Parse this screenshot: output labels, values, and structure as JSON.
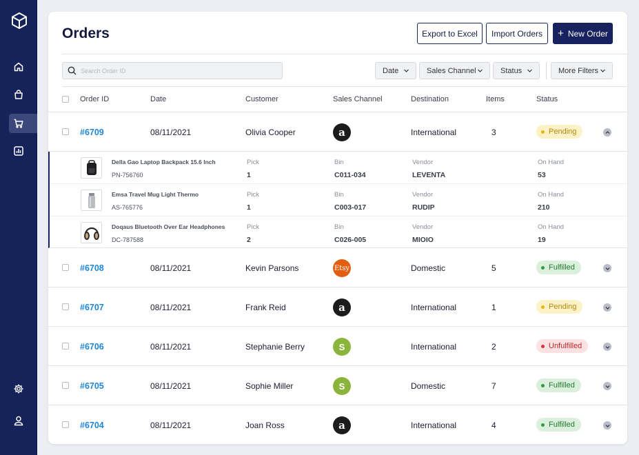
{
  "sidebar": {
    "logo": "box-logo",
    "items": [
      {
        "name": "home",
        "icon": "home-icon"
      },
      {
        "name": "products",
        "icon": "shopping-bag-icon"
      },
      {
        "name": "orders",
        "icon": "cart-icon",
        "active": true
      },
      {
        "name": "reports",
        "icon": "bar-chart-icon"
      },
      {
        "name": "settings",
        "icon": "gear-icon"
      },
      {
        "name": "account",
        "icon": "user-icon"
      }
    ]
  },
  "header": {
    "title": "Orders",
    "export_label": "Export to Excel",
    "import_label": "Import Orders",
    "new_label": "New Order"
  },
  "filters": {
    "search_placeholder": "Search Order ID",
    "date": "Date",
    "sales_channel": "Sales Channel",
    "status": "Status",
    "more": "More Filters"
  },
  "table": {
    "columns": [
      "Order ID",
      "Date",
      "Customer",
      "Sales Channel",
      "Destination",
      "Items",
      "Status"
    ],
    "rows": [
      {
        "id": "#6709",
        "date": "08/11/2021",
        "customer": "Olivia Cooper",
        "channel": "amazon",
        "destination": "International",
        "items": "3",
        "status": "Pending",
        "expanded": true
      },
      {
        "id": "#6708",
        "date": "08/11/2021",
        "customer": "Kevin Parsons",
        "channel": "etsy",
        "destination": "Domestic",
        "items": "5",
        "status": "Fulfilled"
      },
      {
        "id": "#6707",
        "date": "08/11/2021",
        "customer": "Frank Reid",
        "channel": "amazon",
        "destination": "International",
        "items": "1",
        "status": "Pending"
      },
      {
        "id": "#6706",
        "date": "08/11/2021",
        "customer": "Stephanie Berry",
        "channel": "shopify",
        "destination": "International",
        "items": "2",
        "status": "Unfulfilled"
      },
      {
        "id": "#6705",
        "date": "08/11/2021",
        "customer": "Sophie Miller",
        "channel": "shopify",
        "destination": "Domestic",
        "items": "7",
        "status": "Fulfilled"
      },
      {
        "id": "#6704",
        "date": "08/11/2021",
        "customer": "Joan Ross",
        "channel": "amazon",
        "destination": "International",
        "items": "4",
        "status": "Fulfilled"
      }
    ],
    "logo_text": {
      "amazon": "a",
      "etsy": "Etsy",
      "shopify": "S"
    }
  },
  "detail": {
    "labels": {
      "pick": "Pick",
      "bin": "Bin",
      "vendor": "Vendor",
      "on_hand": "On Hand"
    },
    "items": [
      {
        "name": "Della Gao Laptop Backpack 15.6 Inch",
        "sku": "PN-756760",
        "pick": "1",
        "bin": "C011-034",
        "vendor": "LEVENTA",
        "on_hand": "53",
        "thumb": "backpack-icon"
      },
      {
        "name": "Emsa Travel Mug Light Thermo",
        "sku": "AS-765776",
        "pick": "1",
        "bin": "C003-017",
        "vendor": "RUDIP",
        "on_hand": "210",
        "thumb": "thermos-icon"
      },
      {
        "name": "Doqaus Bluetooth Over Ear Headphones",
        "sku": "DC-787588",
        "pick": "2",
        "bin": "C026-005",
        "vendor": "MIOIO",
        "on_hand": "19",
        "thumb": "headphones-icon"
      }
    ]
  },
  "colors": {
    "sidebar": "#16225a",
    "primary": "#17225e",
    "link": "#1f86d6",
    "pending": "#e9b417",
    "fulfilled": "#2f9a3e",
    "unfulfilled": "#d3363a"
  }
}
